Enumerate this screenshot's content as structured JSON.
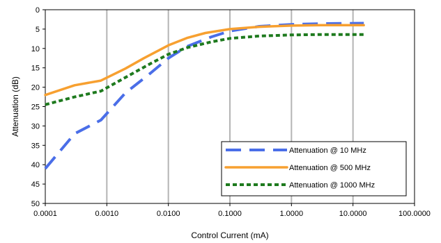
{
  "chart_data": {
    "type": "line",
    "xlabel": "Control Current (mA)",
    "ylabel": "Attenuation (dB)",
    "x_scale": "log",
    "xlim": [
      0.0001,
      100
    ],
    "ylim": [
      0,
      50
    ],
    "y_inverted": true,
    "x_ticks": [
      0.0001,
      0.001,
      0.01,
      0.1,
      1,
      10,
      100
    ],
    "x_tick_labels": [
      "0.0001",
      "0.0010",
      "0.0100",
      "0.1000",
      "1.0000",
      "10.0000",
      "100.0000"
    ],
    "y_ticks": [
      0,
      5,
      10,
      15,
      20,
      25,
      30,
      35,
      40,
      45,
      50
    ],
    "y_tick_labels": [
      "0",
      "5",
      "10",
      "15",
      "20",
      "25",
      "30",
      "35",
      "40",
      "45",
      "50"
    ],
    "grid": "vertical",
    "legend_position": "bottom-right",
    "series": [
      {
        "name": "Attenuation @ 10 MHz",
        "color": "#4a6ee8",
        "dash": "long-dash",
        "x": [
          0.0001,
          0.0003,
          0.0008,
          0.002,
          0.005,
          0.01,
          0.02,
          0.05,
          0.1,
          0.3,
          1,
          3,
          15
        ],
        "y": [
          41,
          32,
          28.5,
          21.5,
          16.5,
          12.5,
          9.5,
          7,
          5.5,
          4.3,
          3.8,
          3.6,
          3.5
        ]
      },
      {
        "name": "Attenuation @ 500 MHz",
        "color": "#f7a030",
        "dash": "solid",
        "x": [
          0.0001,
          0.0003,
          0.0008,
          0.002,
          0.004,
          0.01,
          0.02,
          0.04,
          0.1,
          0.3,
          1,
          3,
          15
        ],
        "y": [
          22,
          19.5,
          18.3,
          15.2,
          12.5,
          9.2,
          7.3,
          6,
          5,
          4.4,
          4.1,
          4.0,
          4.0
        ]
      },
      {
        "name": "Attenuation @ 1000 MHz",
        "color": "#1e7a1e",
        "dash": "dotted",
        "x": [
          0.0001,
          0.0003,
          0.0008,
          0.002,
          0.005,
          0.01,
          0.02,
          0.05,
          0.1,
          0.3,
          1,
          3,
          15
        ],
        "y": [
          24.5,
          22.5,
          21,
          17.5,
          14,
          11.5,
          9.8,
          8.3,
          7.4,
          6.8,
          6.5,
          6.4,
          6.4
        ]
      }
    ]
  }
}
